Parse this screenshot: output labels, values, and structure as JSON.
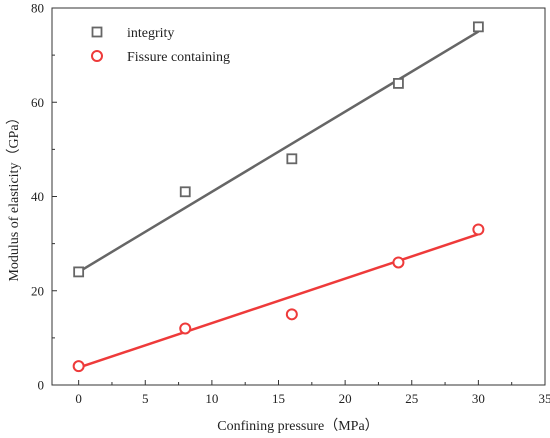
{
  "chart_data": {
    "type": "scatter",
    "title": "",
    "xlabel": "Confining pressure（MPa）",
    "ylabel": "Modulus of elasticity（GPa）",
    "xlim": [
      -2,
      35
    ],
    "ylim": [
      0,
      80
    ],
    "xticks": [
      0,
      5,
      10,
      15,
      20,
      25,
      30,
      35
    ],
    "yticks": [
      0,
      20,
      40,
      60,
      80
    ],
    "x": [
      0,
      8,
      16,
      24,
      30
    ],
    "series": [
      {
        "name": "integrity",
        "marker": "square",
        "color": "#666666",
        "values": [
          24,
          41,
          48,
          64,
          76
        ],
        "fit_line": {
          "x": [
            0,
            30
          ],
          "y": [
            24,
            75
          ]
        }
      },
      {
        "name": "Fissure containing",
        "marker": "circle",
        "color": "#ee3a3a",
        "values": [
          4,
          12,
          15,
          26,
          33
        ],
        "fit_line": {
          "x": [
            0,
            30
          ],
          "y": [
            3.7,
            32
          ]
        }
      }
    ],
    "legend_position": "top-left",
    "grid": false
  }
}
